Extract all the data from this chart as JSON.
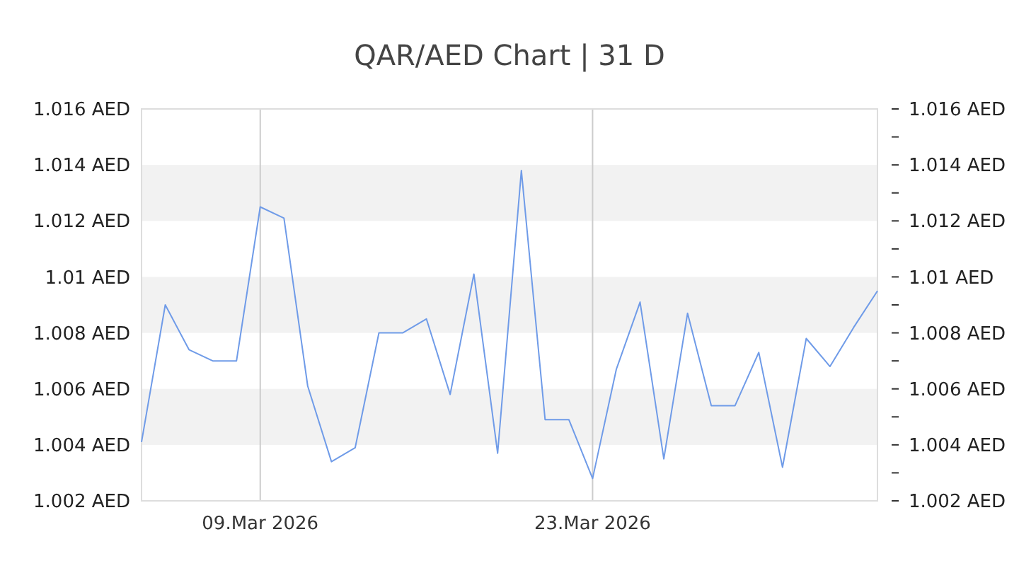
{
  "chart_data": {
    "type": "line",
    "title": "QAR/AED Chart | 31 D",
    "x": [
      "2026-03-04",
      "2026-03-05",
      "2026-03-06",
      "2026-03-07",
      "2026-03-08",
      "2026-03-09",
      "2026-03-10",
      "2026-03-11",
      "2026-03-12",
      "2026-03-13",
      "2026-03-14",
      "2026-03-15",
      "2026-03-16",
      "2026-03-17",
      "2026-03-18",
      "2026-03-19",
      "2026-03-20",
      "2026-03-21",
      "2026-03-22",
      "2026-03-23",
      "2026-03-24",
      "2026-03-25",
      "2026-03-26",
      "2026-03-27",
      "2026-03-28",
      "2026-03-29",
      "2026-03-30",
      "2026-03-31",
      "2026-04-01",
      "2026-04-02",
      "2026-04-03",
      "2026-04-04"
    ],
    "series": [
      {
        "color": "#6f9be8",
        "values": [
          1.0041,
          1.009,
          1.0074,
          1.007,
          1.007,
          1.0125,
          1.0121,
          1.0061,
          1.0034,
          1.0039,
          1.008,
          1.008,
          1.0085,
          1.0058,
          1.0101,
          1.0037,
          1.0138,
          1.0049,
          1.0049,
          1.0028,
          1.0067,
          1.0091,
          1.0035,
          1.0087,
          1.0054,
          1.0054,
          1.0073,
          1.0032,
          1.0078,
          1.0068,
          1.0082,
          1.0095
        ]
      }
    ],
    "xlim": [
      "2026-03-04",
      "2026-04-04"
    ],
    "xticks": [
      {
        "value": "2026-03-09",
        "label": "09.Mar 2026"
      },
      {
        "value": "2026-03-23",
        "label": "23.Mar 2026"
      }
    ],
    "ylim": [
      1.002,
      1.016
    ],
    "yticks": [
      {
        "value": 1.002,
        "label": "1.002 AED"
      },
      {
        "value": 1.004,
        "label": "1.004 AED"
      },
      {
        "value": 1.006,
        "label": "1.006 AED"
      },
      {
        "value": 1.008,
        "label": "1.008 AED"
      },
      {
        "value": 1.01,
        "label": "1.01 AED"
      },
      {
        "value": 1.012,
        "label": "1.012 AED"
      },
      {
        "value": 1.014,
        "label": "1.014 AED"
      },
      {
        "value": 1.016,
        "label": "1.016 AED"
      }
    ],
    "y2lim": [
      1.002,
      1.016
    ],
    "y2ticks": [
      {
        "value": 1.002,
        "label": "1.002 AED"
      },
      {
        "value": 1.003,
        "label": null
      },
      {
        "value": 1.004,
        "label": "1.004 AED"
      },
      {
        "value": 1.005,
        "label": null
      },
      {
        "value": 1.006,
        "label": "1.006 AED"
      },
      {
        "value": 1.007,
        "label": null
      },
      {
        "value": 1.008,
        "label": "1.008 AED"
      },
      {
        "value": 1.009,
        "label": null
      },
      {
        "value": 1.01,
        "label": "1.01 AED"
      },
      {
        "value": 1.011,
        "label": null
      },
      {
        "value": 1.012,
        "label": "1.012 AED"
      },
      {
        "value": 1.013,
        "label": null
      },
      {
        "value": 1.014,
        "label": "1.014 AED"
      },
      {
        "value": 1.015,
        "label": null
      },
      {
        "value": 1.016,
        "label": "1.016 AED"
      }
    ],
    "grid": true,
    "marker": "none",
    "line_style": "solid"
  }
}
